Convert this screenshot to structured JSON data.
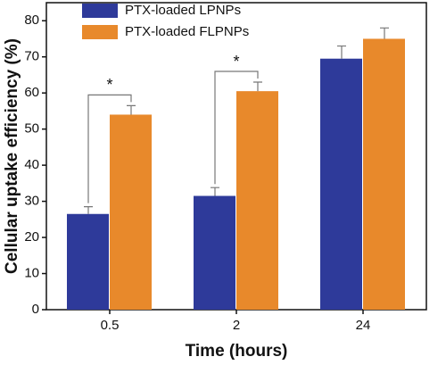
{
  "chart_data": {
    "type": "bar",
    "x_label": "Time (hours)",
    "y_label": "Cellular uptake efficiency (%)",
    "categories": [
      "0.5",
      "2",
      "24"
    ],
    "series": [
      {
        "name": "PTX-loaded LPNPs",
        "color": "#2e3a9a",
        "values": [
          26.5,
          31.5,
          69.5
        ],
        "errors": [
          2,
          2.3,
          3.5
        ]
      },
      {
        "name": "PTX-loaded FLPNPs",
        "color": "#e8892b",
        "values": [
          54,
          60.5,
          75
        ],
        "errors": [
          2.5,
          2.5,
          3
        ]
      }
    ],
    "annotations": [
      {
        "text": "*",
        "category": "0.5"
      },
      {
        "text": "*",
        "category": "2"
      }
    ],
    "ylim": [
      0,
      85
    ],
    "yticks": [
      0,
      10,
      20,
      30,
      40,
      50,
      60,
      70,
      80
    ],
    "legend": "top-left"
  }
}
